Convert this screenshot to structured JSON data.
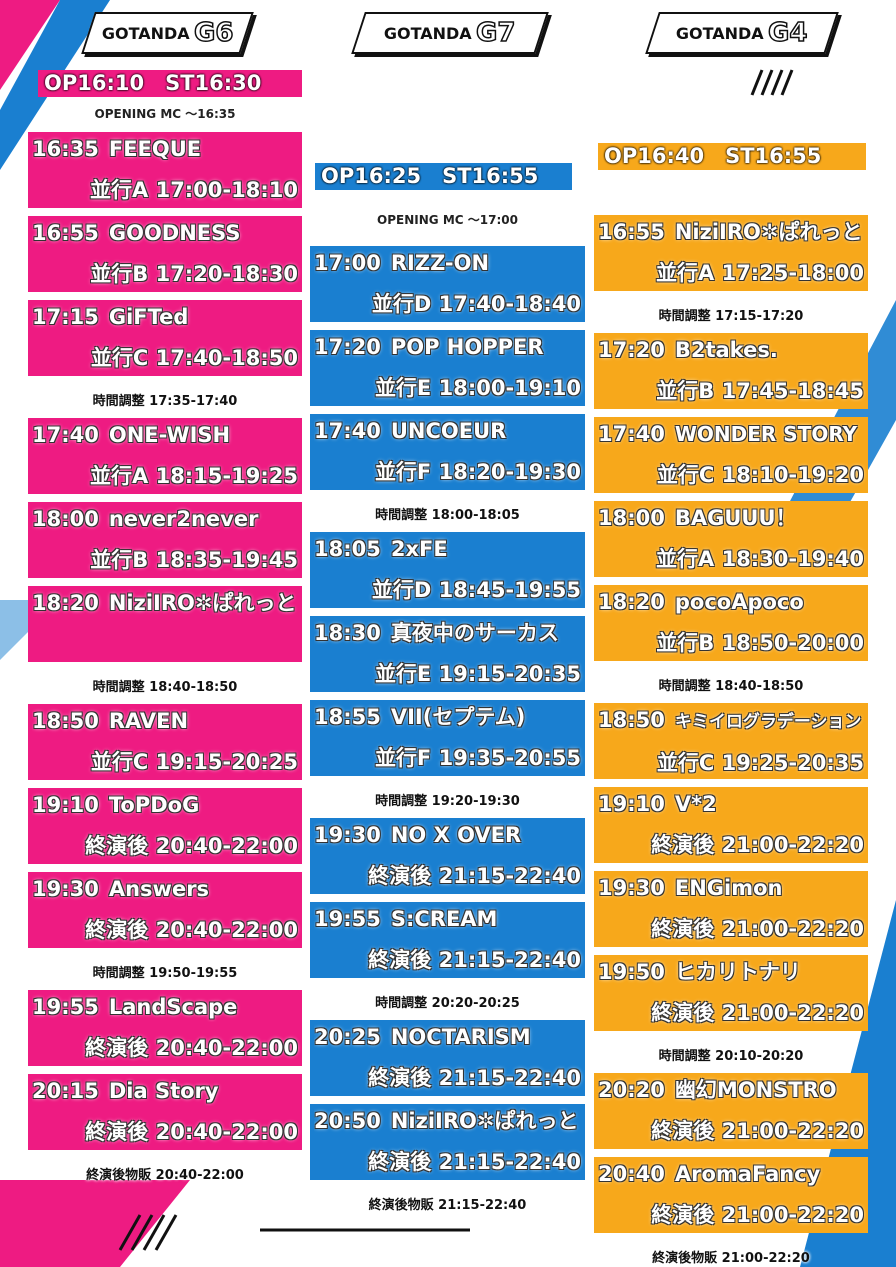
{
  "columns": [
    {
      "venue": "GOTANDA",
      "hall": "G6",
      "open": "OP16:10　ST16:30",
      "mc": "OPENING MC ～16:35",
      "items": [
        {
          "time": "16:35",
          "act": "FEEQUE",
          "sub": "並行A 17:00-18:10"
        },
        {
          "time": "16:55",
          "act": "GOODNESS",
          "sub": "並行B 17:20-18:30"
        },
        {
          "time": "17:15",
          "act": "GiFTed",
          "sub": "並行C 17:40-18:50"
        },
        {
          "note": "時間調整 17:35-17:40"
        },
        {
          "time": "17:40",
          "act": "ONE-WISH",
          "sub": "並行A 18:15-19:25"
        },
        {
          "time": "18:00",
          "act": "never2never",
          "sub": "並行B 18:35-19:45"
        },
        {
          "time": "18:20",
          "act": "NiziIRO✲ぱれっと"
        },
        {
          "note": "時間調整 18:40-18:50"
        },
        {
          "time": "18:50",
          "act": "RAVEN",
          "sub": "並行C 19:15-20:25"
        },
        {
          "time": "19:10",
          "act": "ToPDoG",
          "sub": "終演後 20:40-22:00"
        },
        {
          "time": "19:30",
          "act": "Answers",
          "sub": "終演後 20:40-22:00"
        },
        {
          "note": "時間調整 19:50-19:55"
        },
        {
          "time": "19:55",
          "act": "LandScape",
          "sub": "終演後 20:40-22:00"
        },
        {
          "time": "20:15",
          "act": "Dia Story",
          "sub": "終演後 20:40-22:00"
        },
        {
          "note": "終演後物販 20:40-22:00"
        }
      ]
    },
    {
      "venue": "GOTANDA",
      "hall": "G7",
      "open": "OP16:25　ST16:55",
      "mc": "OPENING MC ～17:00",
      "items": [
        {
          "time": "17:00",
          "act": "RIZZ-ON",
          "sub": "並行D 17:40-18:40"
        },
        {
          "time": "17:20",
          "act": "POP HOPPER",
          "sub": "並行E 18:00-19:10"
        },
        {
          "time": "17:40",
          "act": "UNCOEUR",
          "sub": "並行F 18:20-19:30"
        },
        {
          "note": "時間調整 18:00-18:05"
        },
        {
          "time": "18:05",
          "act": "2xFE",
          "sub": "並行D 18:45-19:55"
        },
        {
          "time": "18:30",
          "act": "真夜中のサーカス",
          "sub": "並行E 19:15-20:35"
        },
        {
          "time": "18:55",
          "act": "VII(セプテム)",
          "sub": "並行F 19:35-20:55"
        },
        {
          "note": "時間調整 19:20-19:30"
        },
        {
          "time": "19:30",
          "act": "NO X OVER",
          "sub": "終演後 21:15-22:40"
        },
        {
          "time": "19:55",
          "act": "S:CREAM",
          "sub": "終演後 21:15-22:40"
        },
        {
          "note": "時間調整 20:20-20:25"
        },
        {
          "time": "20:25",
          "act": "NOCTARISM",
          "sub": "終演後 21:15-22:40"
        },
        {
          "time": "20:50",
          "act": "NiziIRO✲ぱれっと",
          "sub": "終演後 21:15-22:40"
        },
        {
          "note": "終演後物販 21:15-22:40"
        }
      ]
    },
    {
      "venue": "GOTANDA",
      "hall": "G4",
      "open": "OP16:40　ST16:55",
      "items": [
        {
          "time": "16:55",
          "act": "NiziIRO✲ぱれっと",
          "sub": "並行A 17:25-18:00"
        },
        {
          "note": "時間調整 17:15-17:20"
        },
        {
          "time": "17:20",
          "act": "B2takes.",
          "sub": "並行B 17:45-18:45"
        },
        {
          "time": "17:40",
          "act": "WONDER STORY",
          "sub": "並行C 18:10-19:20"
        },
        {
          "time": "18:00",
          "act": "BAGUUU！",
          "sub": "並行A 18:30-19:40"
        },
        {
          "time": "18:20",
          "act": "pocoApoco",
          "sub": "並行B 18:50-20:00"
        },
        {
          "note": "時間調整 18:40-18:50"
        },
        {
          "time": "18:50",
          "act": "キミイログラデーション",
          "sub": "並行C 19:25-20:35"
        },
        {
          "time": "19:10",
          "act": "V*2",
          "sub": "終演後 21:00-22:20"
        },
        {
          "time": "19:30",
          "act": "ENGimon",
          "sub": "終演後 21:00-22:20"
        },
        {
          "time": "19:50",
          "act": "ヒカリトナリ",
          "sub": "終演後 21:00-22:20"
        },
        {
          "note": "時間調整 20:10-20:20"
        },
        {
          "time": "20:20",
          "act": "幽幻MONSTRO",
          "sub": "終演後 21:00-22:20"
        },
        {
          "time": "20:40",
          "act": "AromaFancy",
          "sub": "終演後 21:00-22:20"
        },
        {
          "note": "終演後物販 21:00-22:20"
        }
      ]
    }
  ]
}
